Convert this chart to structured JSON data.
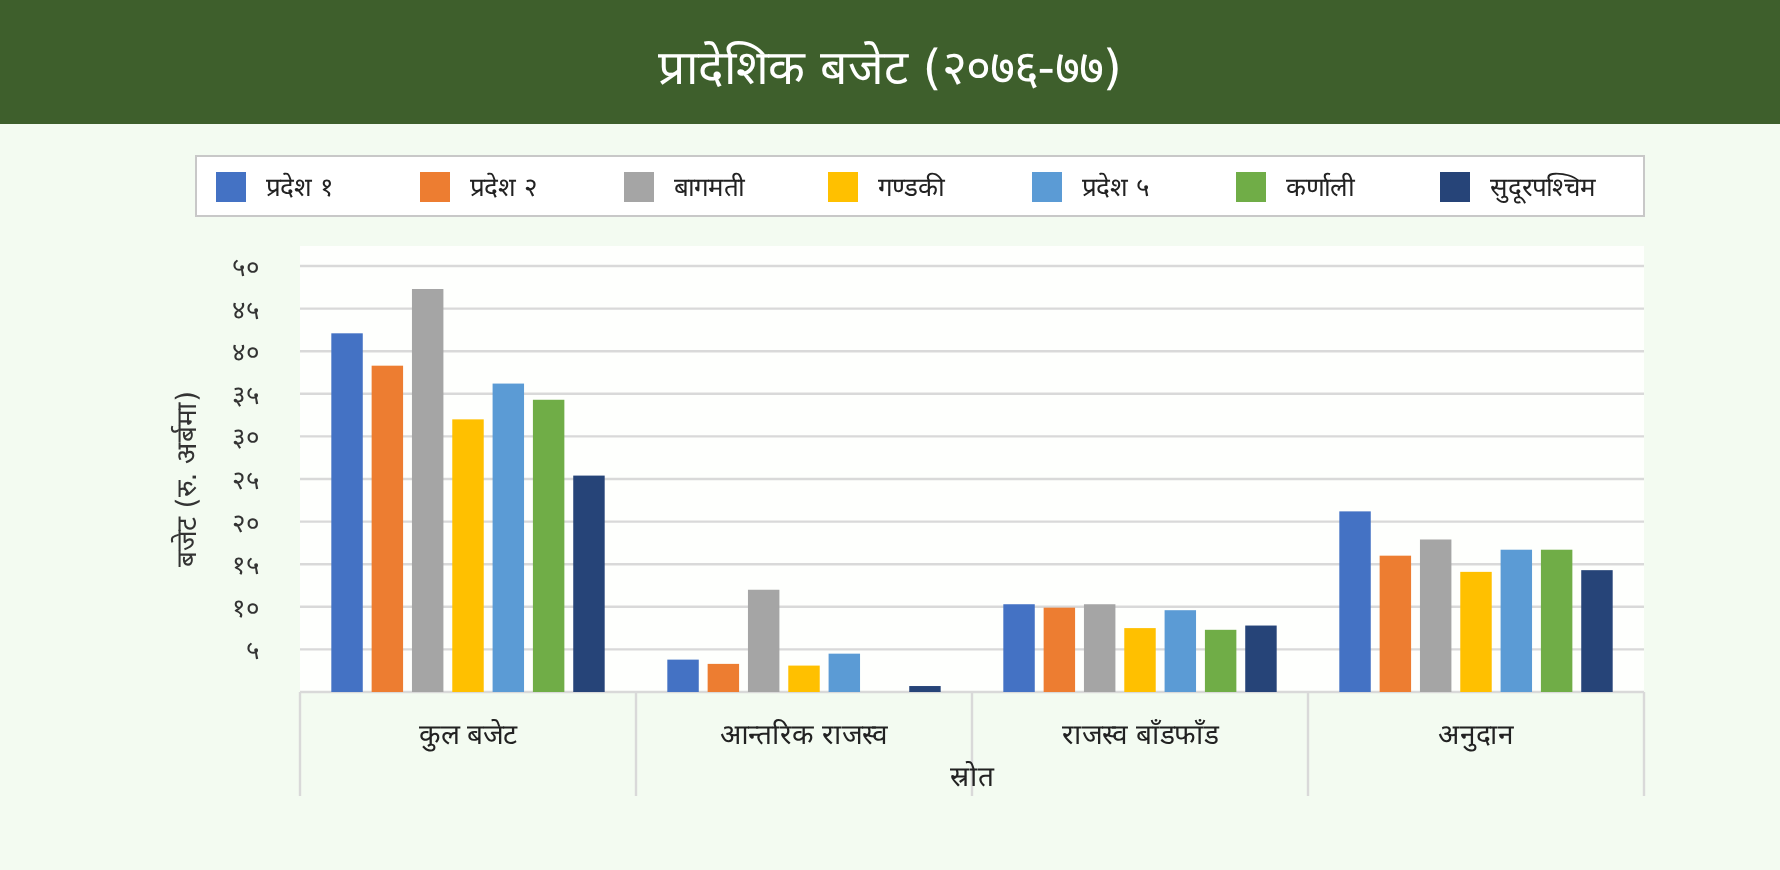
{
  "chart_data": {
    "type": "bar",
    "title": "प्रादेशिक बजेट (२०७६-७७)",
    "xlabel": "स्रोत",
    "ylabel": "बजेट (रु. अर्बमा)",
    "categories": [
      "कुल बजेट",
      "आन्तरिक राजस्व",
      "राजस्व बाँडफाँड",
      "अनुदान"
    ],
    "series": [
      {
        "name": "प्रदेश १",
        "color": "#4472c4",
        "values": [
          42.1,
          3.8,
          10.3,
          21.2
        ]
      },
      {
        "name": "प्रदेश २",
        "color": "#ed7d31",
        "values": [
          38.3,
          3.3,
          9.9,
          16.0
        ]
      },
      {
        "name": "बागमती",
        "color": "#a5a5a5",
        "values": [
          47.3,
          12.0,
          10.3,
          17.9
        ]
      },
      {
        "name": "गण्डकी",
        "color": "#ffc000",
        "values": [
          32.0,
          3.1,
          7.5,
          14.1
        ]
      },
      {
        "name": "प्रदेश ५",
        "color": "#5b9bd5",
        "values": [
          36.2,
          4.5,
          9.6,
          16.7
        ]
      },
      {
        "name": "कर्णाली",
        "color": "#70ad47",
        "values": [
          34.3,
          null,
          7.3,
          16.7
        ]
      },
      {
        "name": "सुदूरपश्चिम",
        "color": "#264478",
        "values": [
          25.4,
          0.7,
          7.8,
          14.3
        ]
      }
    ],
    "ylim": [
      0,
      50
    ],
    "yticks": [
      {
        "value": 5,
        "label": "५"
      },
      {
        "value": 10,
        "label": "१०"
      },
      {
        "value": 15,
        "label": "१५"
      },
      {
        "value": 20,
        "label": "२०"
      },
      {
        "value": 25,
        "label": "२५"
      },
      {
        "value": 30,
        "label": "३०"
      },
      {
        "value": 35,
        "label": "३५"
      },
      {
        "value": 40,
        "label": "४०"
      },
      {
        "value": 45,
        "label": "४५"
      },
      {
        "value": 50,
        "label": "५०"
      }
    ],
    "grid": "y",
    "legend": "top"
  }
}
